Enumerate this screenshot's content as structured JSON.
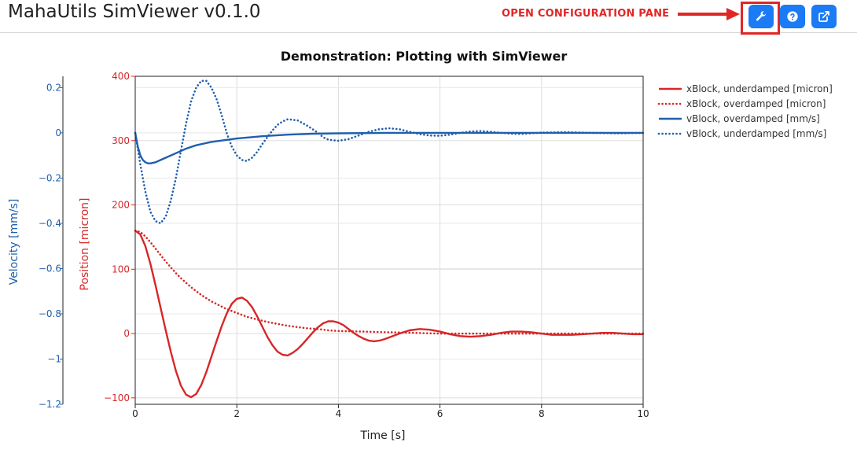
{
  "app": {
    "title": "MahaUtils SimViewer v0.1.0"
  },
  "header": {
    "annotation": "OPEN CONFIGURATION PANE",
    "buttons": [
      {
        "icon": "wrench-icon",
        "role": "config"
      },
      {
        "icon": "help-circle-icon",
        "role": "help"
      },
      {
        "icon": "external-link-icon",
        "role": "popout"
      }
    ],
    "accent": "#1a7bf5",
    "annotation_color": "#e12626"
  },
  "chart_data": {
    "type": "line",
    "title": "Demonstration: Plotting with SimViewer",
    "xlabel": "Time [s]",
    "xlim": [
      0,
      10
    ],
    "x_ticks": [
      0,
      2,
      4,
      6,
      8,
      10
    ],
    "x_tick_labels": [
      "0",
      "2",
      "4",
      "6",
      "8",
      "10"
    ],
    "position_axis": {
      "label": "Position [micron]",
      "ylim": [
        -110,
        400
      ],
      "ticks": [
        400,
        300,
        200,
        100,
        0,
        -100
      ],
      "tick_labels": [
        "400",
        "300",
        "200",
        "100",
        "0",
        "−100"
      ],
      "color": "#d62728"
    },
    "velocity_axis": {
      "label": "Velocity [mm/s]",
      "ylim": [
        -1.2,
        0.25
      ],
      "ticks": [
        0.2,
        0,
        -0.2,
        -0.4,
        -0.6,
        -0.8,
        -1,
        -1.2
      ],
      "tick_labels": [
        "0.2",
        "0",
        "−0.2",
        "−0.4",
        "−0.6",
        "−0.8",
        "−1",
        "−1.2"
      ],
      "color": "#1f5fad"
    },
    "grid": true,
    "legend_position": "top-right",
    "series": [
      {
        "name": "xBlock, underdamped [micron]",
        "axis": "position",
        "color": "#d62728",
        "dash": "solid",
        "x": [
          0,
          0.1,
          0.2,
          0.3,
          0.4,
          0.5,
          0.6,
          0.7,
          0.8,
          0.9,
          1.0,
          1.1,
          1.2,
          1.3,
          1.4,
          1.5,
          1.6,
          1.7,
          1.8,
          1.9,
          2.0,
          2.1,
          2.2,
          2.3,
          2.4,
          2.5,
          2.6,
          2.7,
          2.8,
          2.9,
          3.0,
          3.1,
          3.2,
          3.3,
          3.4,
          3.5,
          3.6,
          3.7,
          3.8,
          3.9,
          4.0,
          4.1,
          4.2,
          4.3,
          4.4,
          4.5,
          4.6,
          4.7,
          4.8,
          4.9,
          5.0,
          5.2,
          5.4,
          5.6,
          5.8,
          6.0,
          6.2,
          6.4,
          6.6,
          6.8,
          7.0,
          7.2,
          7.4,
          7.6,
          7.8,
          8.0,
          8.2,
          8.4,
          8.6,
          8.8,
          9.0,
          9.2,
          9.4,
          9.6,
          9.8,
          10.0
        ],
        "y": [
          160,
          154,
          136,
          108,
          75,
          40,
          5,
          -28,
          -58,
          -81,
          -95,
          -99,
          -94,
          -80,
          -60,
          -36,
          -12,
          11,
          31,
          46,
          54,
          56,
          51,
          41,
          27,
          11,
          -5,
          -18,
          -28,
          -33,
          -34,
          -30,
          -24,
          -16,
          -7,
          2,
          10,
          16,
          19,
          19,
          17,
          13,
          7,
          1,
          -4,
          -8,
          -11,
          -12,
          -11,
          -9,
          -6,
          0,
          5,
          7,
          6,
          3,
          -1,
          -4,
          -5,
          -4,
          -2,
          1,
          3,
          3,
          2,
          0,
          -2,
          -2,
          -2,
          -1,
          0,
          1,
          1,
          0,
          -1,
          -1
        ]
      },
      {
        "name": "xBlock, overdamped [micron]",
        "axis": "position",
        "color": "#d62728",
        "dash": "dotted",
        "x": [
          0,
          0.1,
          0.2,
          0.3,
          0.4,
          0.5,
          0.6,
          0.7,
          0.8,
          0.9,
          1.0,
          1.1,
          1.2,
          1.3,
          1.4,
          1.5,
          1.6,
          1.7,
          1.8,
          1.9,
          2.0,
          2.2,
          2.4,
          2.6,
          2.8,
          3.0,
          3.2,
          3.4,
          3.6,
          3.8,
          4.0,
          4.5,
          5.0,
          5.5,
          6.0,
          6.5,
          7.0,
          8.0,
          9.0,
          10.0
        ],
        "y": [
          160,
          158,
          151,
          142,
          132,
          122,
          112,
          103,
          94,
          86,
          79,
          72,
          66,
          60,
          55,
          50,
          46,
          42,
          38,
          35,
          32,
          26,
          22,
          18,
          15,
          12,
          10,
          8,
          7,
          5,
          4,
          3,
          2,
          1,
          0,
          0,
          0,
          0,
          0,
          0
        ]
      },
      {
        "name": "vBlock, overdamped [mm/s]",
        "axis": "velocity",
        "color": "#1f5fad",
        "dash": "solid",
        "x": [
          0,
          0.05,
          0.1,
          0.15,
          0.2,
          0.25,
          0.3,
          0.4,
          0.5,
          0.6,
          0.8,
          1.0,
          1.2,
          1.5,
          2.0,
          2.5,
          3.0,
          3.5,
          4.0,
          5.0,
          6.0,
          7.0,
          8.0,
          9.0,
          10.0
        ],
        "y": [
          0,
          -0.06,
          -0.1,
          -0.12,
          -0.13,
          -0.135,
          -0.135,
          -0.13,
          -0.12,
          -0.11,
          -0.09,
          -0.07,
          -0.055,
          -0.04,
          -0.025,
          -0.015,
          -0.008,
          -0.004,
          -0.002,
          0,
          0,
          0,
          0,
          0,
          0
        ]
      },
      {
        "name": "vBlock, underdamped [mm/s]",
        "axis": "velocity",
        "color": "#1f5fad",
        "dash": "dotted",
        "x": [
          0,
          0.1,
          0.2,
          0.3,
          0.4,
          0.5,
          0.6,
          0.7,
          0.8,
          0.9,
          1.0,
          1.1,
          1.2,
          1.3,
          1.4,
          1.5,
          1.6,
          1.7,
          1.8,
          1.9,
          2.0,
          2.1,
          2.2,
          2.3,
          2.4,
          2.5,
          2.6,
          2.7,
          2.8,
          2.9,
          3.0,
          3.2,
          3.4,
          3.6,
          3.7,
          3.8,
          4.0,
          4.2,
          4.4,
          4.6,
          4.8,
          5.0,
          5.2,
          5.4,
          5.6,
          5.8,
          6.0,
          6.2,
          6.4,
          6.6,
          6.8,
          7.0,
          7.2,
          7.4,
          7.6,
          7.8,
          8.0,
          8.5,
          9.0,
          9.5,
          10.0
        ],
        "y": [
          0,
          -0.14,
          -0.26,
          -0.35,
          -0.39,
          -0.4,
          -0.37,
          -0.3,
          -0.2,
          -0.08,
          0.04,
          0.14,
          0.2,
          0.23,
          0.23,
          0.2,
          0.15,
          0.08,
          0,
          -0.06,
          -0.1,
          -0.12,
          -0.125,
          -0.11,
          -0.085,
          -0.05,
          -0.02,
          0.01,
          0.035,
          0.05,
          0.06,
          0.055,
          0.03,
          0,
          -0.02,
          -0.03,
          -0.035,
          -0.028,
          -0.012,
          0.005,
          0.016,
          0.02,
          0.016,
          0.005,
          -0.006,
          -0.012,
          -0.013,
          -0.008,
          0,
          0.006,
          0.008,
          0.005,
          0,
          -0.004,
          -0.005,
          -0.002,
          0.001,
          0.003,
          0,
          -0.002,
          0
        ]
      }
    ]
  }
}
